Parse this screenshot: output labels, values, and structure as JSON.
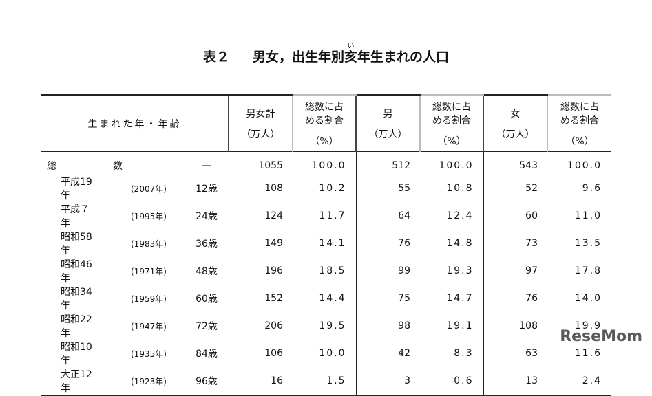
{
  "title": {
    "label": "表２",
    "before": "男女，出生年別",
    "kanji": "亥",
    "ruby": "い",
    "after": "年生まれの人口"
  },
  "table": {
    "header": {
      "label": "生まれた年・年齢",
      "columns": [
        {
          "lines": [
            "男女計"
          ],
          "unit": "（万人）"
        },
        {
          "lines": [
            "総数に占",
            "める割合"
          ],
          "unit": "（%）"
        },
        {
          "lines": [
            "男"
          ],
          "unit": "（万人）"
        },
        {
          "lines": [
            "総数に占",
            "める割合"
          ],
          "unit": "（%）"
        },
        {
          "lines": [
            "女"
          ],
          "unit": "（万人）"
        },
        {
          "lines": [
            "総数に占",
            "める割合"
          ],
          "unit": "（%）"
        }
      ]
    },
    "total": {
      "label": "総　　数",
      "age": "—",
      "cells": [
        "1055",
        "100.0",
        "512",
        "100.0",
        "543",
        "100.0"
      ]
    },
    "rows": [
      {
        "era": "平成19年",
        "year": "(2007年)",
        "age": "12歳",
        "cells": [
          "108",
          "10.2",
          "55",
          "10.8",
          "52",
          "9.6"
        ]
      },
      {
        "era": "平成７年",
        "year": "(1995年)",
        "age": "24歳",
        "cells": [
          "124",
          "11.7",
          "64",
          "12.4",
          "60",
          "11.0"
        ]
      },
      {
        "era": "昭和58年",
        "year": "(1983年)",
        "age": "36歳",
        "cells": [
          "149",
          "14.1",
          "76",
          "14.8",
          "73",
          "13.5"
        ]
      },
      {
        "era": "昭和46年",
        "year": "(1971年)",
        "age": "48歳",
        "cells": [
          "196",
          "18.5",
          "99",
          "19.3",
          "97",
          "17.8"
        ]
      },
      {
        "era": "昭和34年",
        "year": "(1959年)",
        "age": "60歳",
        "cells": [
          "152",
          "14.4",
          "75",
          "14.7",
          "76",
          "14.0"
        ]
      },
      {
        "era": "昭和22年",
        "year": "(1947年)",
        "age": "72歳",
        "cells": [
          "206",
          "19.5",
          "98",
          "19.1",
          "108",
          "19.9"
        ]
      },
      {
        "era": "昭和10年",
        "year": "(1935年)",
        "age": "84歳",
        "cells": [
          "106",
          "10.0",
          "42",
          "8.3",
          "63",
          "11.6"
        ]
      },
      {
        "era": "大正12年",
        "year": "(1923年)",
        "age": "96歳",
        "cells": [
          "16",
          "1.5",
          "3",
          "0.6",
          "13",
          "2.4"
        ]
      }
    ]
  },
  "watermark": "ReseMom"
}
